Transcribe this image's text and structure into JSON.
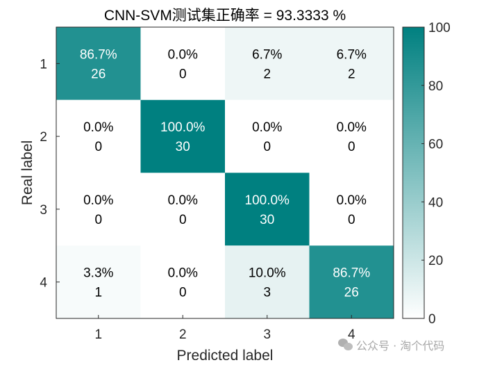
{
  "chart_data": {
    "type": "heatmap",
    "title": "CNN-SVM测试集正确率 = 93.3333 %",
    "xlabel": "Predicted label",
    "ylabel": "Real label",
    "x_ticks": [
      "1",
      "2",
      "3",
      "4"
    ],
    "y_ticks": [
      "1",
      "2",
      "3",
      "4"
    ],
    "counts": [
      [
        26,
        0,
        2,
        2
      ],
      [
        0,
        30,
        0,
        0
      ],
      [
        0,
        0,
        30,
        0
      ],
      [
        1,
        0,
        3,
        26
      ]
    ],
    "percents": [
      [
        "86.7%",
        "0.0%",
        "6.7%",
        "6.7%"
      ],
      [
        "0.0%",
        "100.0%",
        "0.0%",
        "0.0%"
      ],
      [
        "0.0%",
        "0.0%",
        "100.0%",
        "0.0%"
      ],
      [
        "3.3%",
        "0.0%",
        "10.0%",
        "86.7%"
      ]
    ],
    "percent_values": [
      [
        86.7,
        0,
        6.7,
        6.7
      ],
      [
        0,
        100,
        0,
        0
      ],
      [
        0,
        0,
        100,
        0
      ],
      [
        3.3,
        0,
        10,
        86.7
      ]
    ],
    "colorbar": {
      "range": [
        0,
        100
      ],
      "ticks": [
        "0",
        "20",
        "40",
        "60",
        "80",
        "100"
      ],
      "low_color": "#ffffff",
      "high_color": "#008080"
    }
  },
  "watermark": "公众号 · 淘个代码"
}
